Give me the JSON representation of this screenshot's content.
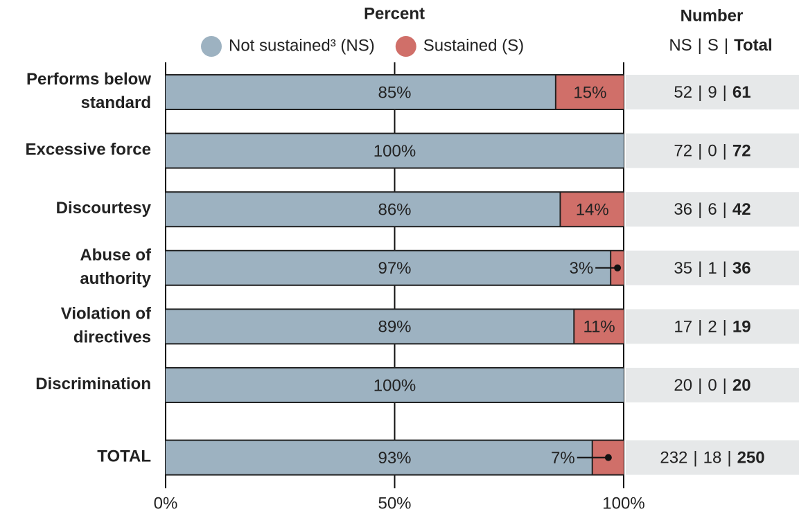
{
  "chart_data": {
    "type": "bar",
    "orientation": "horizontal",
    "stacked": true,
    "title": "Percent",
    "categories": [
      [
        "Performs below",
        "standard"
      ],
      [
        "Excessive force"
      ],
      [
        "Discourtesy"
      ],
      [
        "Abuse of",
        "authority"
      ],
      [
        "Violation of",
        "directives"
      ],
      [
        "Discrimination"
      ],
      [
        "TOTAL"
      ]
    ],
    "series": [
      {
        "name": "Not sustained³ (NS)",
        "color": "#9db2c1",
        "values": [
          85,
          100,
          86,
          97,
          89,
          100,
          93
        ],
        "value_labels": [
          "85%",
          "100%",
          "86%",
          "97%",
          "89%",
          "100%",
          "93%"
        ]
      },
      {
        "name": "Sustained (S)",
        "color": "#d06f69",
        "values": [
          15,
          0,
          14,
          3,
          11,
          0,
          7
        ],
        "value_labels": [
          "15%",
          null,
          "14%",
          "3%",
          "11%",
          null,
          "7%"
        ]
      }
    ],
    "xlim": [
      0,
      100
    ],
    "xticks": [
      {
        "value": 0,
        "label": "0%"
      },
      {
        "value": 50,
        "label": "50%"
      },
      {
        "value": 100,
        "label": "100%"
      }
    ],
    "grid": true,
    "table": {
      "title": "Number",
      "separator": "|",
      "columns": [
        "NS",
        "S",
        "Total"
      ],
      "rows": [
        [
          52,
          9,
          61
        ],
        [
          72,
          0,
          72
        ],
        [
          36,
          6,
          42
        ],
        [
          35,
          1,
          36
        ],
        [
          17,
          2,
          19
        ],
        [
          20,
          0,
          20
        ],
        [
          232,
          18,
          250
        ]
      ]
    }
  }
}
